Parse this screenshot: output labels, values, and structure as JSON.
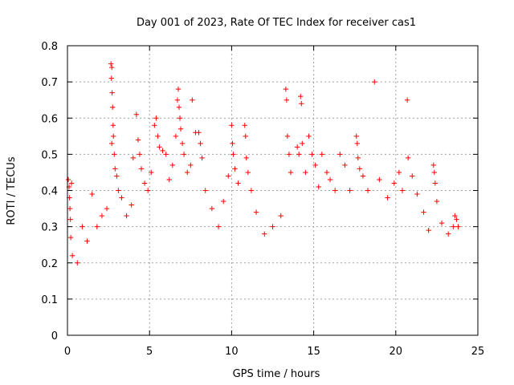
{
  "chart_data": {
    "type": "scatter",
    "title": "Day 001 of 2023, Rate Of TEC Index for receiver cas1",
    "xlabel": "GPS time / hours",
    "ylabel": "ROTI / TECUs",
    "xlim": [
      0,
      25
    ],
    "ylim": [
      0,
      0.8
    ],
    "xticks": [
      "0",
      "5",
      "10",
      "15",
      "20",
      "25"
    ],
    "yticks": [
      "0",
      "0.1",
      "0.2",
      "0.3",
      "0.4",
      "0.5",
      "0.6",
      "0.7",
      "0.8"
    ],
    "grid": true,
    "marker": "plus",
    "color": "#ff0000",
    "series": [
      {
        "points": [
          [
            0.05,
            0.43
          ],
          [
            0.1,
            0.41
          ],
          [
            0.12,
            0.38
          ],
          [
            0.15,
            0.35
          ],
          [
            0.18,
            0.32
          ],
          [
            0.2,
            0.27
          ],
          [
            0.25,
            0.42
          ],
          [
            0.3,
            0.22
          ],
          [
            0.6,
            0.2
          ],
          [
            0.9,
            0.3
          ],
          [
            1.2,
            0.26
          ],
          [
            1.5,
            0.39
          ],
          [
            1.8,
            0.3
          ],
          [
            2.1,
            0.33
          ],
          [
            2.4,
            0.35
          ],
          [
            2.65,
            0.75
          ],
          [
            2.7,
            0.74
          ],
          [
            2.68,
            0.71
          ],
          [
            2.72,
            0.67
          ],
          [
            2.75,
            0.63
          ],
          [
            2.78,
            0.58
          ],
          [
            2.8,
            0.55
          ],
          [
            2.7,
            0.53
          ],
          [
            2.85,
            0.5
          ],
          [
            2.9,
            0.46
          ],
          [
            3.0,
            0.44
          ],
          [
            3.1,
            0.4
          ],
          [
            3.3,
            0.38
          ],
          [
            3.6,
            0.33
          ],
          [
            3.9,
            0.36
          ],
          [
            4.0,
            0.49
          ],
          [
            4.2,
            0.61
          ],
          [
            4.3,
            0.54
          ],
          [
            4.4,
            0.5
          ],
          [
            4.5,
            0.46
          ],
          [
            4.7,
            0.42
          ],
          [
            4.9,
            0.4
          ],
          [
            5.1,
            0.45
          ],
          [
            5.3,
            0.58
          ],
          [
            5.4,
            0.6
          ],
          [
            5.5,
            0.55
          ],
          [
            5.6,
            0.52
          ],
          [
            5.8,
            0.51
          ],
          [
            6.0,
            0.5
          ],
          [
            6.2,
            0.43
          ],
          [
            6.4,
            0.47
          ],
          [
            6.6,
            0.55
          ],
          [
            6.7,
            0.65
          ],
          [
            6.75,
            0.68
          ],
          [
            6.8,
            0.63
          ],
          [
            6.85,
            0.6
          ],
          [
            6.9,
            0.57
          ],
          [
            7.0,
            0.53
          ],
          [
            7.1,
            0.5
          ],
          [
            7.3,
            0.45
          ],
          [
            7.5,
            0.47
          ],
          [
            7.6,
            0.65
          ],
          [
            7.8,
            0.56
          ],
          [
            8.0,
            0.56
          ],
          [
            8.1,
            0.53
          ],
          [
            8.2,
            0.49
          ],
          [
            8.4,
            0.4
          ],
          [
            8.8,
            0.35
          ],
          [
            9.2,
            0.3
          ],
          [
            9.5,
            0.37
          ],
          [
            9.8,
            0.44
          ],
          [
            10.0,
            0.58
          ],
          [
            10.05,
            0.53
          ],
          [
            10.1,
            0.5
          ],
          [
            10.2,
            0.46
          ],
          [
            10.4,
            0.42
          ],
          [
            10.8,
            0.58
          ],
          [
            10.85,
            0.55
          ],
          [
            10.9,
            0.49
          ],
          [
            11.0,
            0.45
          ],
          [
            11.2,
            0.4
          ],
          [
            11.5,
            0.34
          ],
          [
            12.0,
            0.28
          ],
          [
            12.5,
            0.3
          ],
          [
            13.0,
            0.33
          ],
          [
            13.3,
            0.68
          ],
          [
            13.35,
            0.65
          ],
          [
            13.4,
            0.55
          ],
          [
            13.5,
            0.5
          ],
          [
            13.6,
            0.45
          ],
          [
            14.0,
            0.52
          ],
          [
            14.1,
            0.5
          ],
          [
            14.2,
            0.66
          ],
          [
            14.25,
            0.64
          ],
          [
            14.3,
            0.53
          ],
          [
            14.5,
            0.45
          ],
          [
            14.7,
            0.55
          ],
          [
            14.9,
            0.5
          ],
          [
            15.1,
            0.47
          ],
          [
            15.3,
            0.41
          ],
          [
            15.5,
            0.5
          ],
          [
            15.8,
            0.45
          ],
          [
            16.0,
            0.43
          ],
          [
            16.3,
            0.4
          ],
          [
            16.6,
            0.5
          ],
          [
            16.9,
            0.47
          ],
          [
            17.2,
            0.4
          ],
          [
            17.6,
            0.55
          ],
          [
            17.65,
            0.53
          ],
          [
            17.7,
            0.49
          ],
          [
            17.8,
            0.46
          ],
          [
            18.0,
            0.44
          ],
          [
            18.3,
            0.4
          ],
          [
            18.7,
            0.7
          ],
          [
            19.0,
            0.43
          ],
          [
            19.5,
            0.38
          ],
          [
            19.9,
            0.42
          ],
          [
            20.2,
            0.45
          ],
          [
            20.4,
            0.4
          ],
          [
            20.7,
            0.65
          ],
          [
            20.75,
            0.49
          ],
          [
            21.0,
            0.44
          ],
          [
            21.3,
            0.39
          ],
          [
            21.7,
            0.34
          ],
          [
            22.0,
            0.29
          ],
          [
            22.3,
            0.47
          ],
          [
            22.35,
            0.45
          ],
          [
            22.4,
            0.42
          ],
          [
            22.5,
            0.37
          ],
          [
            22.8,
            0.31
          ],
          [
            23.2,
            0.28
          ],
          [
            23.5,
            0.3
          ],
          [
            23.6,
            0.33
          ],
          [
            23.7,
            0.32
          ],
          [
            23.8,
            0.3
          ]
        ]
      }
    ]
  }
}
